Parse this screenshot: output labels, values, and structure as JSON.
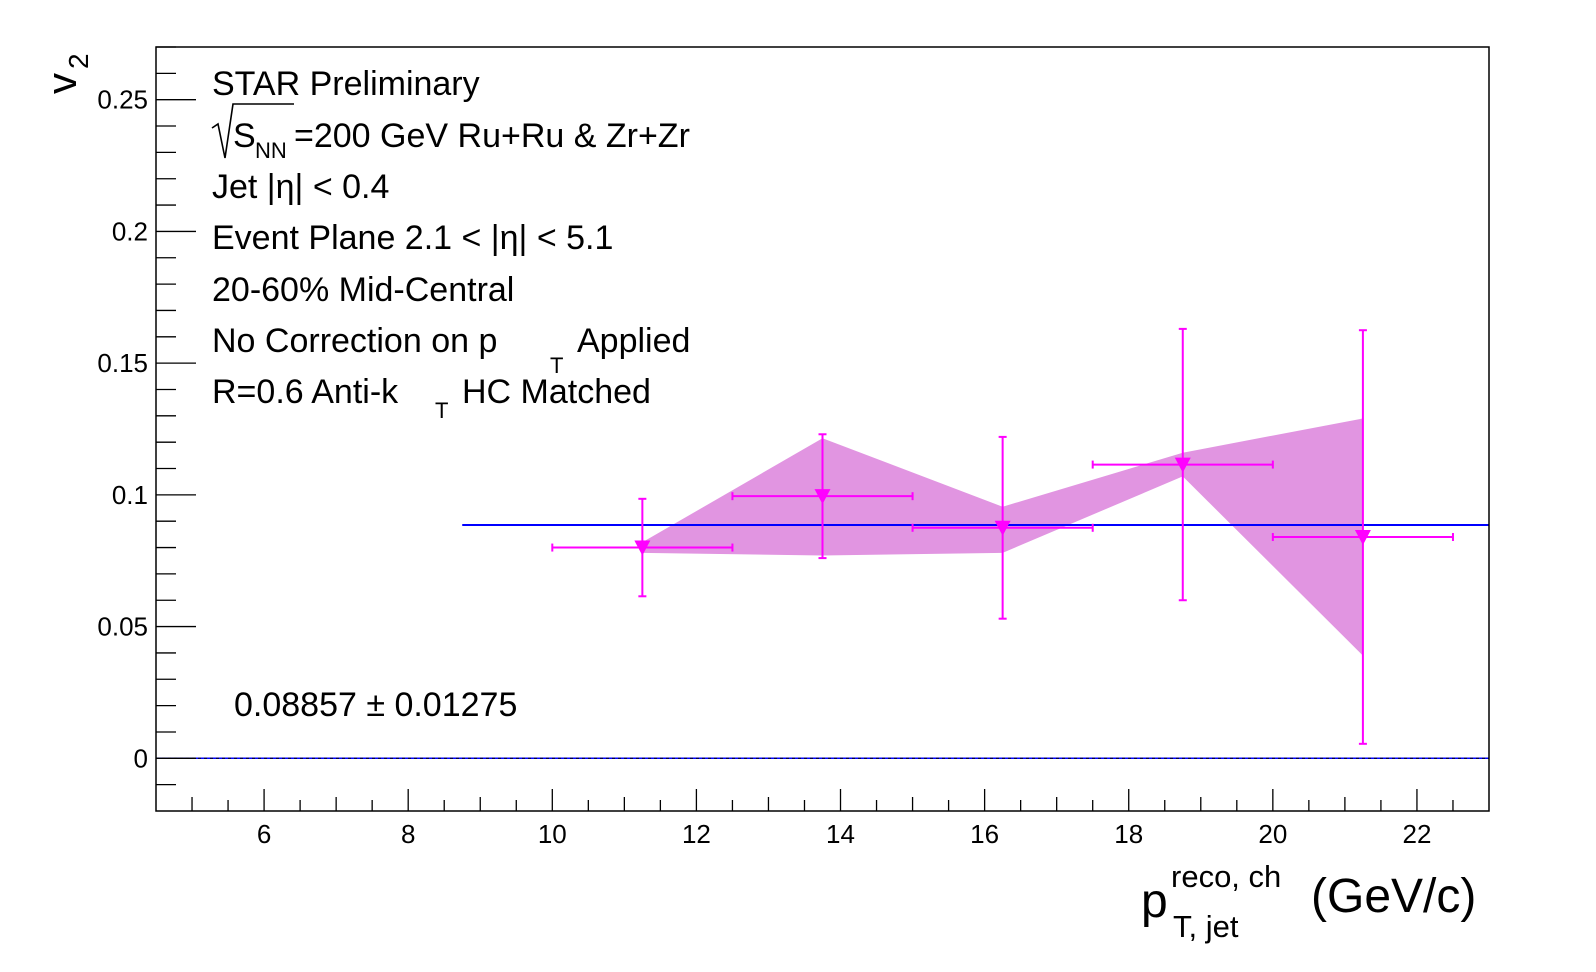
{
  "chart_data": {
    "type": "scatter",
    "title": "",
    "xlabel_main": "p",
    "xlabel_sup": "reco, ch",
    "xlabel_sub": "T, jet",
    "xlabel_unit": "(GeV/c)",
    "ylabel_main": "v",
    "ylabel_sub": "2",
    "xlim": [
      4.5,
      23
    ],
    "ylim": [
      -0.02,
      0.27
    ],
    "x_ticks": [
      6,
      8,
      10,
      12,
      14,
      16,
      18,
      20,
      22
    ],
    "x_tick_labels": [
      "6",
      "8",
      "10",
      "12",
      "14",
      "16",
      "18",
      "20",
      "22"
    ],
    "y_ticks": [
      0,
      0.05,
      0.1,
      0.15,
      0.2,
      0.25
    ],
    "y_tick_labels": [
      "0",
      "0.05",
      "0.1",
      "0.15",
      "0.2",
      "0.25"
    ],
    "annotations": {
      "line1": "STAR Preliminary",
      "line2_sub": "NN",
      "line2_s": "S",
      "line2_rest": "=200 GeV Ru+Ru & Zr+Zr",
      "line3": "Jet |η| < 0.4",
      "line4": "Event Plane 2.1 < |η| < 5.1",
      "line5": "20-60% Mid-Central",
      "line6_a": "No Correction on p",
      "line6_sub": "T",
      "line6_b": "Applied",
      "line7_a": "R=0.6 Anti-k",
      "line7_sub": "T",
      "line7_b": "HC Matched",
      "fit_result": "0.08857 ± 0.01275"
    },
    "fit_value": 0.08857,
    "fit_xrange": [
      8.75,
      23
    ],
    "zero_line": 0,
    "colors": {
      "points": "#ff00ff",
      "band": "#e195e1",
      "fit": "#0000ff",
      "frame": "#000000"
    },
    "series": [
      {
        "x": [
          11.25,
          13.75,
          16.25,
          18.75,
          21.25
        ],
        "y": [
          0.08,
          0.0995,
          0.0875,
          0.1115,
          0.084
        ],
        "x_err": [
          1.25,
          1.25,
          1.25,
          1.25,
          1.25
        ],
        "y_err_low": [
          0.0185,
          0.0235,
          0.0345,
          0.0515,
          0.0785
        ],
        "y_err_high": [
          0.0185,
          0.0235,
          0.0345,
          0.0515,
          0.0785
        ]
      }
    ],
    "systematic_band": {
      "x": [
        11.25,
        13.75,
        16.25,
        18.75,
        21.25
      ],
      "low": [
        0.078,
        0.077,
        0.078,
        0.107,
        0.039
      ],
      "high": [
        0.082,
        0.1215,
        0.0955,
        0.116,
        0.129
      ]
    }
  }
}
